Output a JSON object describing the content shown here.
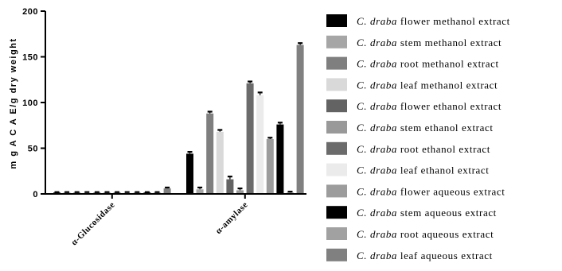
{
  "chart_data": {
    "type": "bar",
    "ylabel": "m g A C A E/g dry weight",
    "ylim": [
      0,
      200
    ],
    "yticks": [
      0,
      50,
      100,
      150,
      200
    ],
    "grid": false,
    "legend_position": "right",
    "categories": [
      "α-Glucosidase",
      "α-amylase"
    ],
    "series": [
      {
        "name": "flower methanol extract",
        "species": "C. draba",
        "color": "#000000",
        "values": [
          1.5,
          44
        ],
        "errors": [
          0.5,
          2
        ]
      },
      {
        "name": "stem methanol extract",
        "species": "C. draba",
        "color": "#a6a6a6",
        "values": [
          1.5,
          5
        ],
        "errors": [
          0.5,
          2
        ]
      },
      {
        "name": "root methanol extract",
        "species": "C. draba",
        "color": "#7f7f7f",
        "values": [
          1.5,
          88
        ],
        "errors": [
          0.5,
          2
        ]
      },
      {
        "name": "leaf methanol extract",
        "species": "C. draba",
        "color": "#d9d9d9",
        "values": [
          1.5,
          68
        ],
        "errors": [
          0.5,
          2
        ]
      },
      {
        "name": "flower ethanol extract",
        "species": "C. draba",
        "color": "#636363",
        "values": [
          1.5,
          16
        ],
        "errors": [
          0.5,
          3
        ]
      },
      {
        "name": "stem ethanol extract",
        "species": "C. draba",
        "color": "#999999",
        "values": [
          1.5,
          4
        ],
        "errors": [
          0.5,
          2
        ]
      },
      {
        "name": "root ethanol extract",
        "species": "C. draba",
        "color": "#6b6b6b",
        "values": [
          1.5,
          121
        ],
        "errors": [
          0.5,
          2
        ]
      },
      {
        "name": "leaf ethanol extract",
        "species": "C. draba",
        "color": "#ebebeb",
        "values": [
          1.5,
          108
        ],
        "errors": [
          0.5,
          3
        ]
      },
      {
        "name": "flower aqueous extract",
        "species": "C. draba",
        "color": "#9c9c9c",
        "values": [
          1.5,
          60
        ],
        "errors": [
          0.5,
          1.5
        ]
      },
      {
        "name": "stem aqueous extract",
        "species": "C. draba",
        "color": "#000000",
        "values": [
          1.5,
          76
        ],
        "errors": [
          0.5,
          2
        ]
      },
      {
        "name": "root aqueous extract",
        "species": "C. draba",
        "color": "#a1a1a1",
        "values": [
          1.5,
          1.5
        ],
        "errors": [
          0.5,
          1
        ]
      },
      {
        "name": "leaf aqueous extract",
        "species": "C. draba",
        "color": "#808080",
        "values": [
          6,
          163
        ],
        "errors": [
          1,
          2
        ]
      }
    ]
  }
}
